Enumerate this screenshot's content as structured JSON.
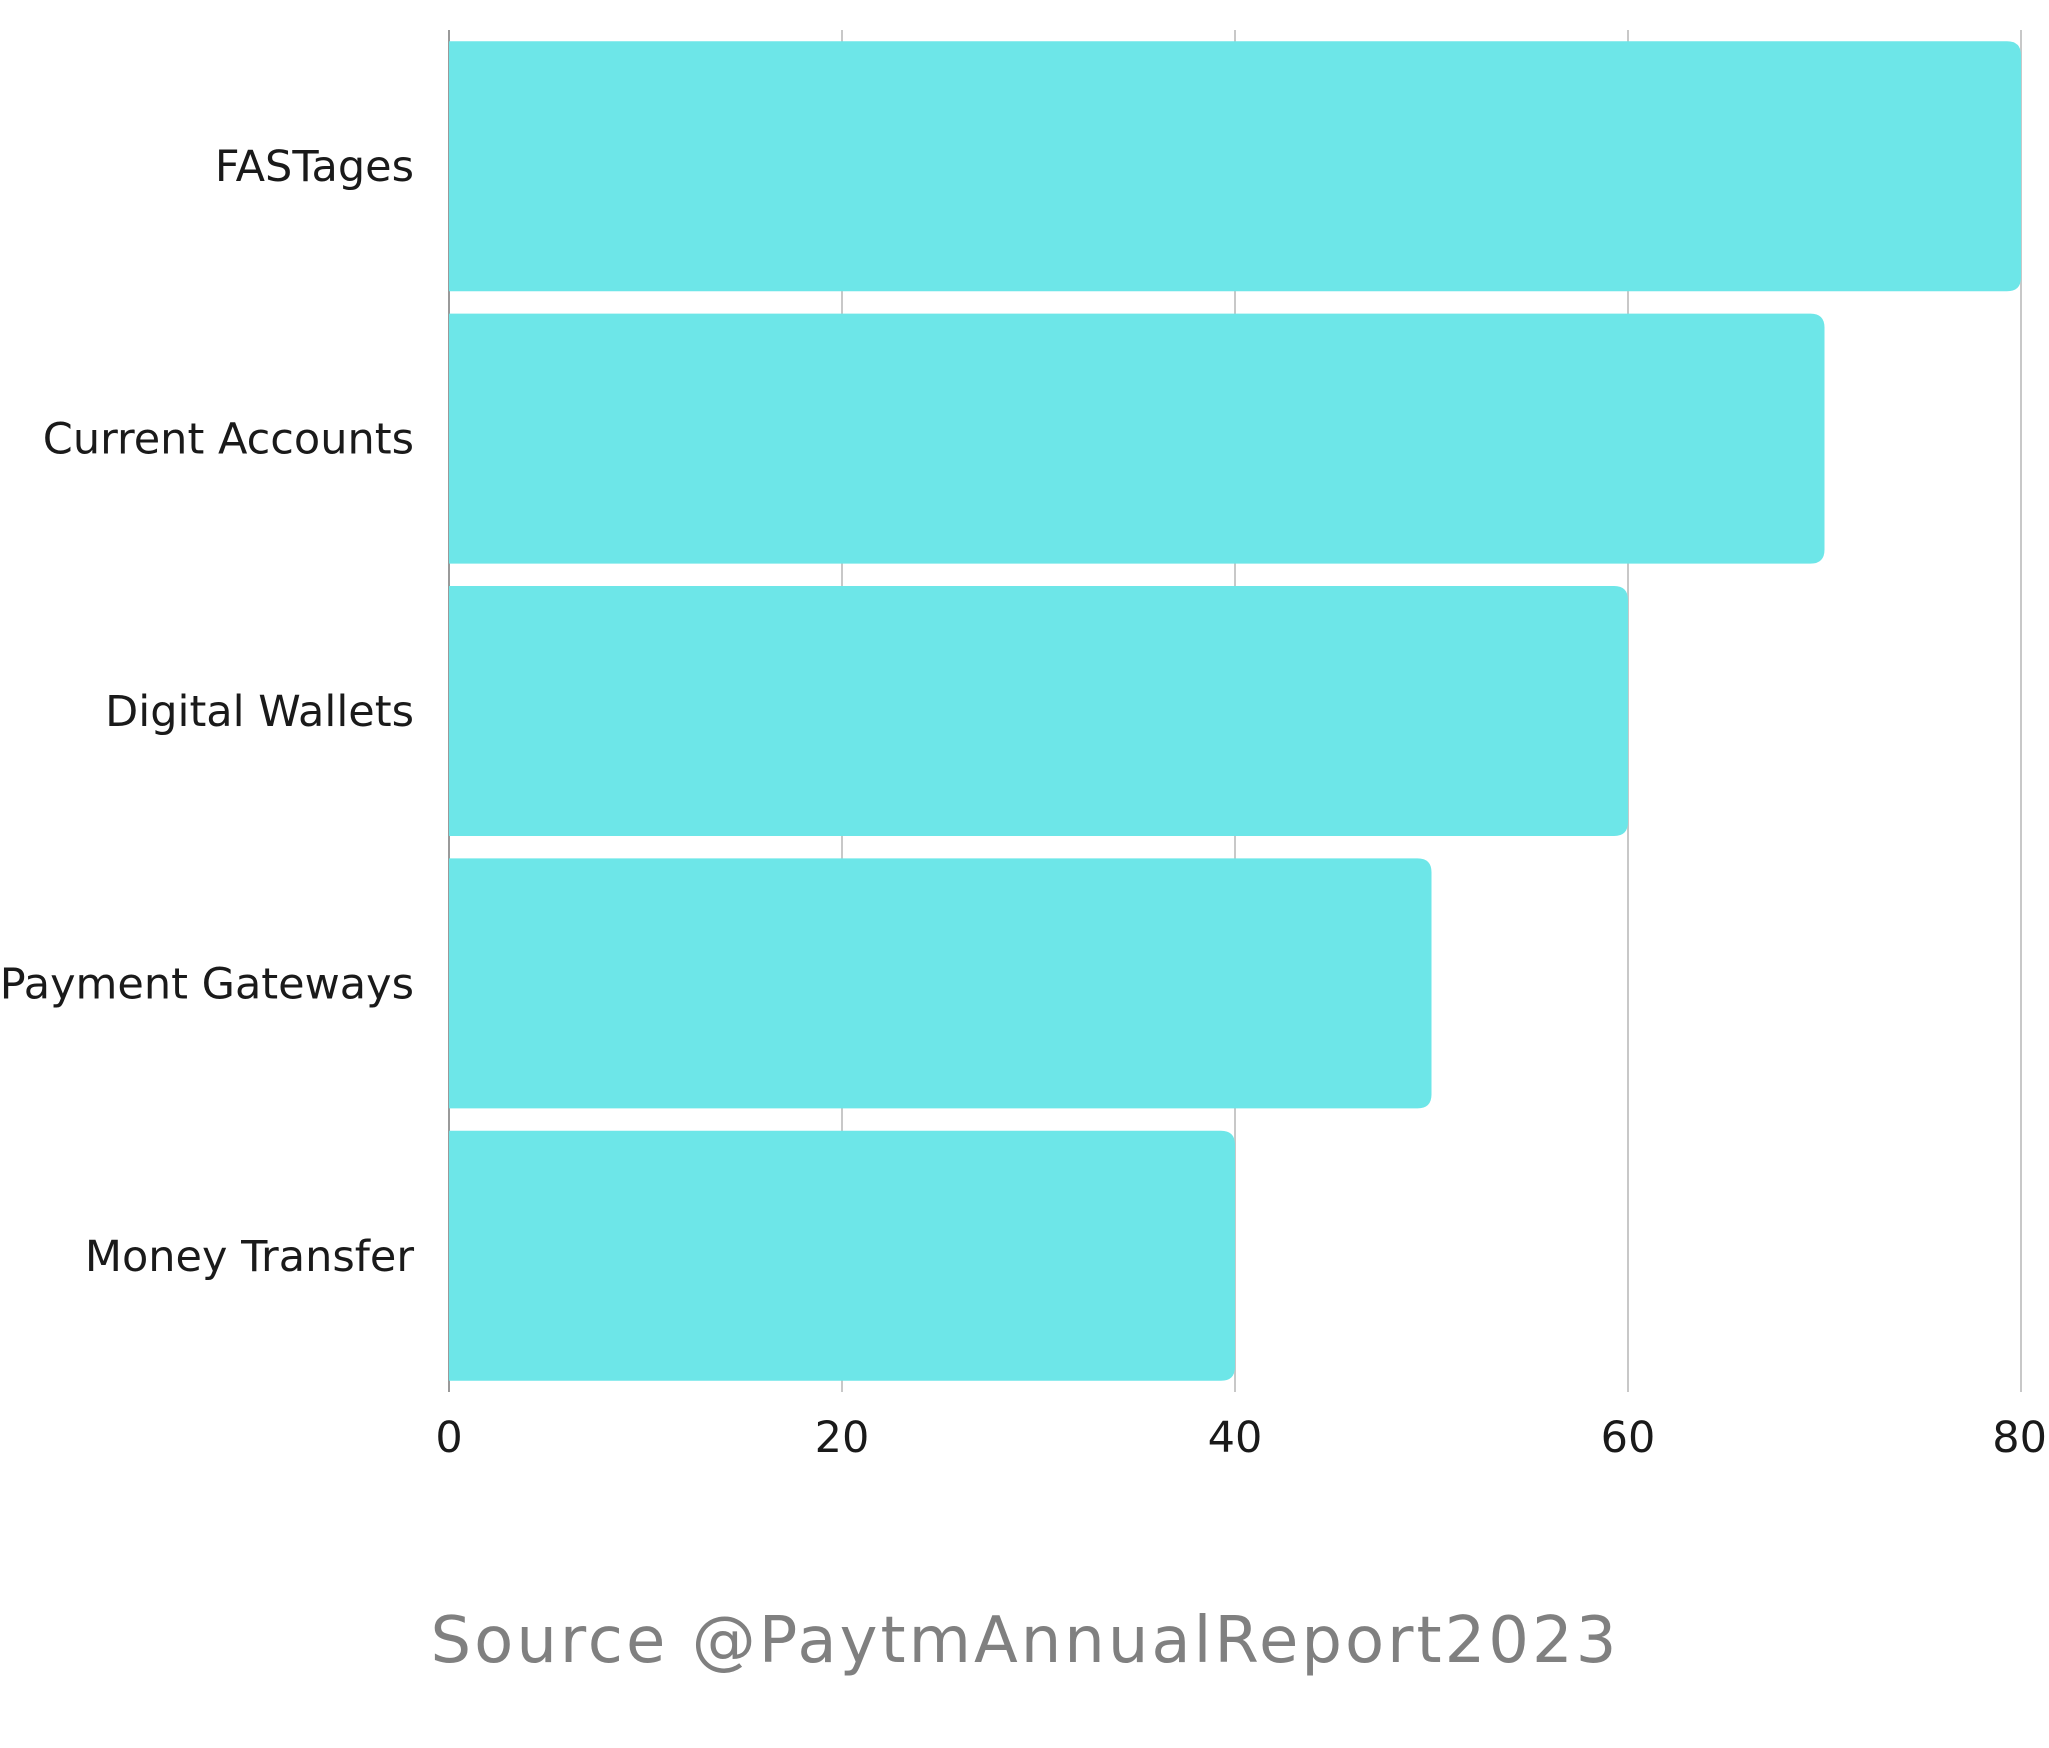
{
  "chart_data": {
    "type": "bar",
    "orientation": "horizontal",
    "categories": [
      "FASTages",
      "Current Accounts",
      "Digital Wallets",
      "Payment Gateways",
      "Money Transfer"
    ],
    "values": [
      80,
      70,
      60,
      50,
      40
    ],
    "xlim": [
      0,
      80
    ],
    "xticks": [
      "0",
      "20",
      "40",
      "60",
      "80"
    ],
    "title": "",
    "xlabel": "",
    "ylabel": "",
    "grid": "vertical",
    "legend": "none",
    "bar_color": "#6de6e8",
    "grid_color": "#c8c8c8",
    "source": "Source @PaytmAnnualReport2023"
  }
}
